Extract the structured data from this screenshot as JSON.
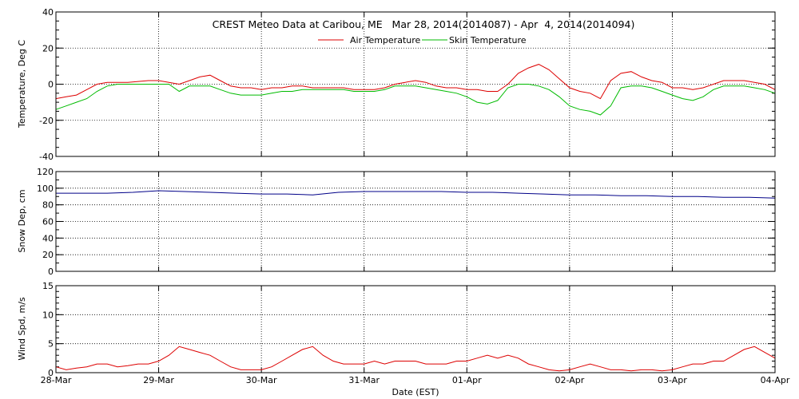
{
  "chart_data": {
    "type": "line",
    "title": "CREST Meteo Data at Caribou, ME   Mar 28, 2014(2014087) - Apr  4, 2014(2014094)",
    "xlabel": "Date (EST)",
    "x_ticks": [
      "28-Mar",
      "29-Mar",
      "30-Mar",
      "31-Mar",
      "01-Apr",
      "02-Apr",
      "03-Apr",
      "04-Apr"
    ],
    "xlim_days": [
      0,
      7
    ],
    "grid": true,
    "legend": "top-center",
    "panels": [
      {
        "ylabel": "Temperature, Deg C",
        "ylim": [
          -40,
          40
        ],
        "yticks": [
          -40,
          -20,
          0,
          20,
          40
        ],
        "series": [
          {
            "name": "Air Temperature",
            "color": "#dd0000",
            "x": [
              0,
              0.1,
              0.2,
              0.3,
              0.4,
              0.5,
              0.6,
              0.7,
              0.8,
              0.9,
              1.0,
              1.1,
              1.2,
              1.3,
              1.4,
              1.5,
              1.6,
              1.7,
              1.8,
              1.9,
              2.0,
              2.1,
              2.2,
              2.3,
              2.4,
              2.5,
              2.6,
              2.7,
              2.8,
              2.9,
              3.0,
              3.1,
              3.2,
              3.3,
              3.4,
              3.5,
              3.6,
              3.7,
              3.8,
              3.9,
              4.0,
              4.1,
              4.2,
              4.3,
              4.4,
              4.5,
              4.6,
              4.7,
              4.8,
              4.9,
              5.0,
              5.1,
              5.2,
              5.3,
              5.4,
              5.5,
              5.6,
              5.7,
              5.8,
              5.9,
              6.0,
              6.1,
              6.2,
              6.3,
              6.4,
              6.5,
              6.6,
              6.7,
              6.8,
              6.9,
              7.0
            ],
            "values": [
              -8,
              -7,
              -6,
              -3,
              0,
              1,
              1,
              1,
              1.5,
              2,
              2,
              1,
              0,
              2,
              4,
              5,
              2,
              -1,
              -2,
              -2,
              -3,
              -2,
              -2,
              -1,
              -1,
              -2,
              -2,
              -2,
              -2,
              -3,
              -3,
              -3,
              -2,
              0,
              1,
              2,
              1,
              -1,
              -2,
              -2,
              -3,
              -3,
              -4,
              -4,
              0,
              6,
              9,
              11,
              8,
              3,
              -2,
              -4,
              -5,
              -8,
              2,
              6,
              7,
              4,
              2,
              1,
              -2,
              -2,
              -3,
              -2,
              0,
              2,
              2,
              2,
              1,
              0,
              -3
            ]
          },
          {
            "name": "Skin Temperature",
            "color": "#00bb00",
            "x": [
              0,
              0.1,
              0.2,
              0.3,
              0.4,
              0.5,
              0.6,
              0.7,
              0.8,
              0.9,
              1.0,
              1.1,
              1.2,
              1.3,
              1.4,
              1.5,
              1.6,
              1.7,
              1.8,
              1.9,
              2.0,
              2.1,
              2.2,
              2.3,
              2.4,
              2.5,
              2.6,
              2.7,
              2.8,
              2.9,
              3.0,
              3.1,
              3.2,
              3.3,
              3.4,
              3.5,
              3.6,
              3.7,
              3.8,
              3.9,
              4.0,
              4.1,
              4.2,
              4.3,
              4.4,
              4.5,
              4.6,
              4.7,
              4.8,
              4.9,
              5.0,
              5.1,
              5.2,
              5.3,
              5.4,
              5.5,
              5.6,
              5.7,
              5.8,
              5.9,
              6.0,
              6.1,
              6.2,
              6.3,
              6.4,
              6.5,
              6.6,
              6.7,
              6.8,
              6.9,
              7.0
            ],
            "values": [
              -14,
              -12,
              -10,
              -8,
              -4,
              -1,
              0,
              0,
              0,
              0,
              0,
              0,
              -4,
              -1,
              -1,
              -1,
              -3,
              -5,
              -6,
              -6,
              -6,
              -5,
              -4,
              -4,
              -3,
              -3,
              -3,
              -3,
              -3,
              -4,
              -4,
              -4,
              -3,
              -1,
              -1,
              -1,
              -2,
              -3,
              -4,
              -5,
              -7,
              -10,
              -11,
              -9,
              -2,
              0,
              0,
              -1,
              -3,
              -7,
              -12,
              -14,
              -15,
              -17,
              -12,
              -2,
              -1,
              -1,
              -2,
              -4,
              -6,
              -8,
              -9,
              -7,
              -3,
              -1,
              -1,
              -1,
              -2,
              -3,
              -5
            ]
          }
        ]
      },
      {
        "ylabel": "Snow Dep, cm",
        "ylim": [
          0,
          120
        ],
        "yticks": [
          0,
          20,
          40,
          60,
          80,
          100,
          120
        ],
        "series": [
          {
            "color": "#000088",
            "x": [
              0,
              0.25,
              0.5,
              0.75,
              1.0,
              1.25,
              1.5,
              1.75,
              2.0,
              2.25,
              2.5,
              2.75,
              3.0,
              3.25,
              3.5,
              3.75,
              4.0,
              4.25,
              4.5,
              4.75,
              5.0,
              5.25,
              5.5,
              5.75,
              6.0,
              6.25,
              6.5,
              6.75,
              7.0
            ],
            "values": [
              94,
              94,
              94,
              95,
              97,
              96,
              95,
              94,
              93,
              93,
              92,
              95,
              96,
              96,
              96,
              96,
              95,
              95,
              94,
              93,
              92,
              92,
              91,
              91,
              90,
              90,
              89,
              89,
              88
            ]
          }
        ]
      },
      {
        "ylabel": "Wind Spd, m/s",
        "ylim": [
          0,
          15
        ],
        "yticks": [
          0,
          5,
          10,
          15
        ],
        "series": [
          {
            "color": "#dd0000",
            "x": [
              0,
              0.1,
              0.2,
              0.3,
              0.4,
              0.5,
              0.6,
              0.7,
              0.8,
              0.9,
              1.0,
              1.1,
              1.2,
              1.3,
              1.4,
              1.5,
              1.6,
              1.7,
              1.8,
              1.9,
              2.0,
              2.1,
              2.2,
              2.3,
              2.4,
              2.5,
              2.6,
              2.7,
              2.8,
              2.9,
              3.0,
              3.1,
              3.2,
              3.3,
              3.4,
              3.5,
              3.6,
              3.7,
              3.8,
              3.9,
              4.0,
              4.1,
              4.2,
              4.3,
              4.4,
              4.5,
              4.6,
              4.7,
              4.8,
              4.9,
              5.0,
              5.1,
              5.2,
              5.3,
              5.4,
              5.5,
              5.6,
              5.7,
              5.8,
              5.9,
              6.0,
              6.1,
              6.2,
              6.3,
              6.4,
              6.5,
              6.6,
              6.7,
              6.8,
              6.9,
              7.0
            ],
            "values": [
              1,
              0.5,
              0.8,
              1,
              1.5,
              1.5,
              1,
              1.2,
              1.5,
              1.5,
              2,
              3,
              4.5,
              4,
              3.5,
              3,
              2,
              1,
              0.5,
              0.5,
              0.5,
              1,
              2,
              3,
              4,
              4.5,
              3,
              2,
              1.5,
              1.5,
              1.5,
              2,
              1.5,
              2,
              2,
              2,
              1.5,
              1.5,
              1.5,
              2,
              2,
              2.5,
              3,
              2.5,
              3,
              2.5,
              1.5,
              1,
              0.5,
              0.3,
              0.5,
              1,
              1.5,
              1,
              0.5,
              0.5,
              0.3,
              0.5,
              0.5,
              0.3,
              0.5,
              1,
              1.5,
              1.5,
              2,
              2,
              3,
              4,
              4.5,
              3.5,
              2.5
            ]
          }
        ]
      }
    ]
  }
}
